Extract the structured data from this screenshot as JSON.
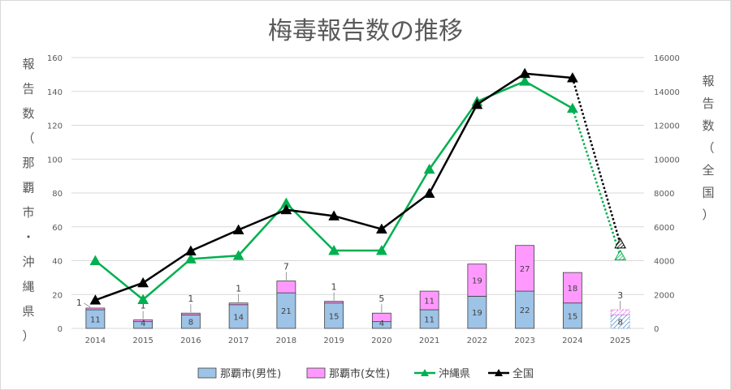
{
  "chart_data": {
    "type": "bar",
    "title": "梅毒報告数の推移",
    "ylabel_left": "報告数（那覇市・沖縄県）",
    "ylabel_right": "報告数（全国）",
    "ylim_left": [
      0,
      160
    ],
    "ylim_right": [
      0,
      16000
    ],
    "left_ticks": [
      "0",
      "20",
      "40",
      "60",
      "80",
      "100",
      "120",
      "140",
      "160"
    ],
    "right_ticks": [
      "0",
      "2000",
      "4000",
      "6000",
      "8000",
      "10000",
      "12000",
      "14000",
      "16000"
    ],
    "categories": [
      "2014",
      "2015",
      "2016",
      "2017",
      "2018",
      "2019",
      "2020",
      "2021",
      "2022",
      "2023",
      "2024",
      "2025"
    ],
    "series": [
      {
        "name": "那覇市(男性)",
        "kind": "bar",
        "axis": "left",
        "color": "#9DC3E6",
        "values": [
          11,
          4,
          8,
          14,
          21,
          15,
          4,
          11,
          19,
          22,
          15,
          8
        ],
        "labels": [
          "11",
          "4",
          "8",
          "14",
          "21",
          "15",
          "4",
          "11",
          "19",
          "22",
          "15",
          "8"
        ]
      },
      {
        "name": "那覇市(女性)",
        "kind": "bar",
        "axis": "left",
        "color": "#FF99FF",
        "values": [
          1,
          1,
          1,
          1,
          7,
          1,
          5,
          11,
          19,
          27,
          18,
          3
        ],
        "labels": [
          "1",
          "1",
          "1",
          "1",
          "7",
          "1",
          "5",
          "11",
          "19",
          "27",
          "18",
          "3"
        ]
      },
      {
        "name": "沖縄県",
        "kind": "line",
        "axis": "left",
        "color": "#00B050",
        "values": [
          40,
          17,
          41,
          43,
          74,
          46,
          46,
          94,
          134,
          146,
          130,
          43
        ]
      },
      {
        "name": "全国",
        "kind": "line",
        "axis": "right",
        "color": "#000000",
        "values": [
          1671,
          2690,
          4575,
          5820,
          7007,
          6642,
          5867,
          7978,
          13228,
          15055,
          14800,
          5000
        ]
      }
    ],
    "legend_position": "bottom",
    "grid": true,
    "provisional_last_point": true
  }
}
